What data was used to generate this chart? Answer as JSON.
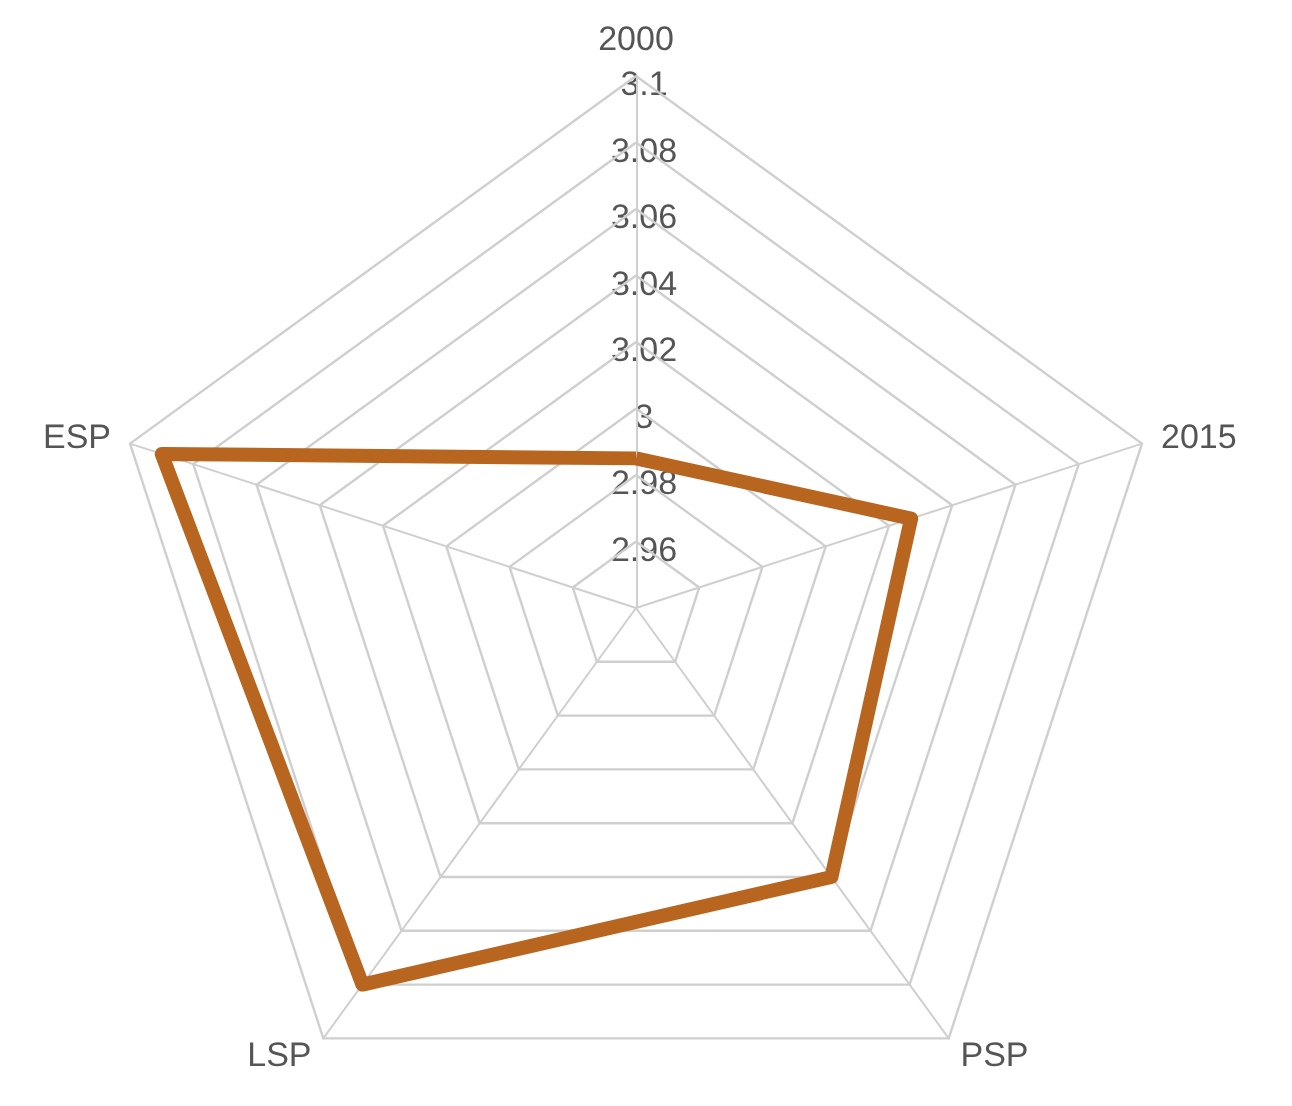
{
  "chart_data": {
    "type": "radar",
    "categories": [
      "2000",
      "2015",
      "PSP",
      "LSP",
      "ESP"
    ],
    "series": [
      {
        "color": "#b8651f",
        "values": [
          2.985,
          3.027,
          3.04,
          3.08,
          3.09
        ]
      }
    ],
    "ylim": [
      2.94,
      3.1
    ],
    "yticks": [
      2.96,
      2.98,
      3,
      3.02,
      3.04,
      3.06,
      3.08,
      3.1
    ],
    "grid": true,
    "marker": "none",
    "line_style": "solid"
  }
}
